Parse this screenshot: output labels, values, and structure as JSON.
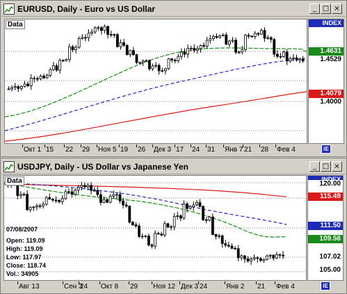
{
  "charts": [
    {
      "title": "EURUSD, Daily - Euro vs US Dollar",
      "data_tag": "Data",
      "index_label": "INDEX",
      "price_labels": [
        {
          "value": "1.4631",
          "bg": "#1a8a1a",
          "color": "#ffffff"
        },
        {
          "value": "1.4529",
          "bg": "#ffffff",
          "color": "#000000"
        },
        {
          "value": "1.4079",
          "bg": "#d81a1a",
          "color": "#ffffff"
        },
        {
          "value": "1.4000",
          "bg": "#ffffff",
          "color": "#000000"
        }
      ],
      "time_labels": [
        "Окт 1",
        "15",
        "22",
        "29",
        "Ноя 5",
        "19",
        "26",
        "Дек 3",
        "17",
        "24",
        "31",
        "Янв 7",
        "21",
        "28",
        "Фев 4"
      ],
      "corner_label": "IE"
    },
    {
      "title": "USDJPY, Daily - US Dollar vs Japanese Yen",
      "data_tag": "Data",
      "index_label": "INDEX",
      "price_labels": [
        {
          "value": "120.00",
          "bg": "#ffffff",
          "color": "#000000"
        },
        {
          "value": "115.49",
          "bg": "#d81a1a",
          "color": "#ffffff"
        },
        {
          "value": "111.50",
          "bg": "#1d2bb6",
          "color": "#ffffff"
        },
        {
          "value": "109.56",
          "bg": "#1a8a1a",
          "color": "#ffffff"
        },
        {
          "value": "107.02",
          "bg": "#ffffff",
          "color": "#000000"
        },
        {
          "value": "105.00",
          "bg": "#ffffff",
          "color": "#000000"
        }
      ],
      "time_labels": [
        "Авг 13",
        "Сен 3",
        "24",
        "Окт 8",
        "29",
        "Ноя 12",
        "Дек 3",
        "24",
        "Янв 2",
        "21",
        "Фев 4"
      ],
      "corner_label": "IE",
      "info": {
        "date": "07/08/2007",
        "open": "Open: 119.09",
        "high": "High: 119.09",
        "low": "Low: 117.97",
        "close": "Close: 118.74",
        "vol": "Vol.: 34905"
      }
    }
  ],
  "window_buttons": {
    "minimize": "_",
    "maximize": "□",
    "close": "×"
  },
  "colors": {
    "ma_fast": "#1a8a1a",
    "ma_mid": "#1d2bb6",
    "ma_slow": "#d81a1a",
    "candle_up": "#ffffff",
    "candle_down": "#000000",
    "grid": "#000000"
  }
}
